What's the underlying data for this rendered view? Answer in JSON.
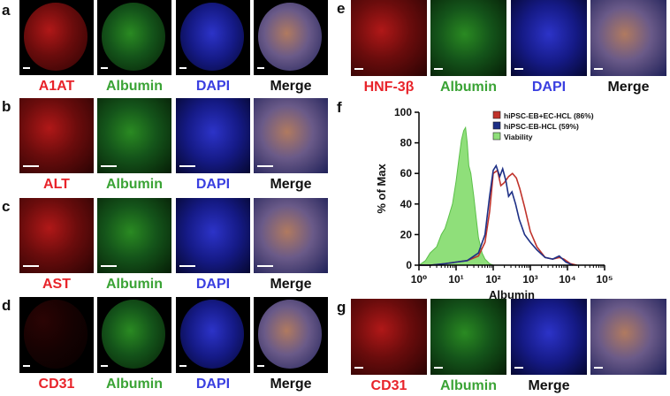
{
  "panels": {
    "a": {
      "letter": "a",
      "captions": [
        "A1AT",
        "Albumin",
        "DAPI",
        "Merge"
      ]
    },
    "b": {
      "letter": "b",
      "captions": [
        "ALT",
        "Albumin",
        "DAPI",
        "Merge"
      ]
    },
    "c": {
      "letter": "c",
      "captions": [
        "AST",
        "Albumin",
        "DAPI",
        "Merge"
      ]
    },
    "d": {
      "letter": "d",
      "captions": [
        "CD31",
        "Albumin",
        "DAPI",
        "Merge"
      ]
    },
    "e": {
      "letter": "e",
      "captions": [
        "HNF-3β",
        "Albumin",
        "DAPI",
        "Merge"
      ]
    },
    "f": {
      "letter": "f"
    },
    "g": {
      "letter": "g",
      "captions": [
        "CD31",
        "Albumin",
        "Merge"
      ]
    }
  },
  "colors": {
    "red": "#e8232a",
    "green": "#3aa335",
    "blue": "#3a3fe0",
    "black": "#111111",
    "series_red": "#c0332b",
    "series_blue": "#1d2f85",
    "series_green_fill": "#8fdf7a"
  },
  "chart_data": {
    "type": "line",
    "xlabel": "Albumin",
    "ylabel": "% of Max",
    "xscale": "log",
    "xlim": [
      1,
      100000
    ],
    "ylim": [
      0,
      100
    ],
    "yticks": [
      0,
      20,
      40,
      60,
      80,
      100
    ],
    "xticks": [
      "10⁰",
      "10¹",
      "10²",
      "10³",
      "10⁴",
      "10⁵"
    ],
    "legend_position": "top-right",
    "series": [
      {
        "name": "hiPSC-EB+EC-HCL (86%)",
        "color": "#c0332b",
        "style": "line",
        "x": [
          1,
          2,
          5,
          10,
          20,
          40,
          60,
          80,
          100,
          130,
          160,
          200,
          260,
          330,
          420,
          520,
          700,
          1000,
          1500,
          2500,
          4000,
          6000,
          8000,
          12000,
          18000
        ],
        "y": [
          0,
          0,
          1,
          2,
          3,
          6,
          15,
          35,
          60,
          62,
          52,
          54,
          58,
          60,
          57,
          50,
          38,
          22,
          12,
          5,
          4,
          5,
          4,
          1,
          0
        ]
      },
      {
        "name": "hiPSC-EB-HCL (59%)",
        "color": "#1d2f85",
        "style": "line",
        "x": [
          1,
          2,
          5,
          10,
          20,
          40,
          60,
          80,
          100,
          120,
          150,
          180,
          220,
          260,
          320,
          400,
          500,
          700,
          1000,
          1500,
          2500,
          4000,
          6000,
          9000,
          14000
        ],
        "y": [
          0,
          0,
          1,
          2,
          3,
          8,
          20,
          45,
          62,
          65,
          58,
          63,
          55,
          45,
          48,
          40,
          30,
          20,
          15,
          10,
          5,
          4,
          6,
          2,
          0
        ]
      },
      {
        "name": "Viability",
        "color": "#8fdf7a",
        "style": "area",
        "x": [
          1,
          1.5,
          2,
          3,
          4,
          5,
          6,
          8,
          10,
          12,
          14,
          16,
          18,
          20,
          22,
          25,
          30,
          35,
          40,
          50,
          60,
          80,
          100
        ],
        "y": [
          0,
          3,
          8,
          12,
          20,
          24,
          30,
          40,
          55,
          70,
          82,
          88,
          90,
          80,
          65,
          60,
          45,
          30,
          18,
          8,
          4,
          1,
          0
        ]
      }
    ]
  }
}
